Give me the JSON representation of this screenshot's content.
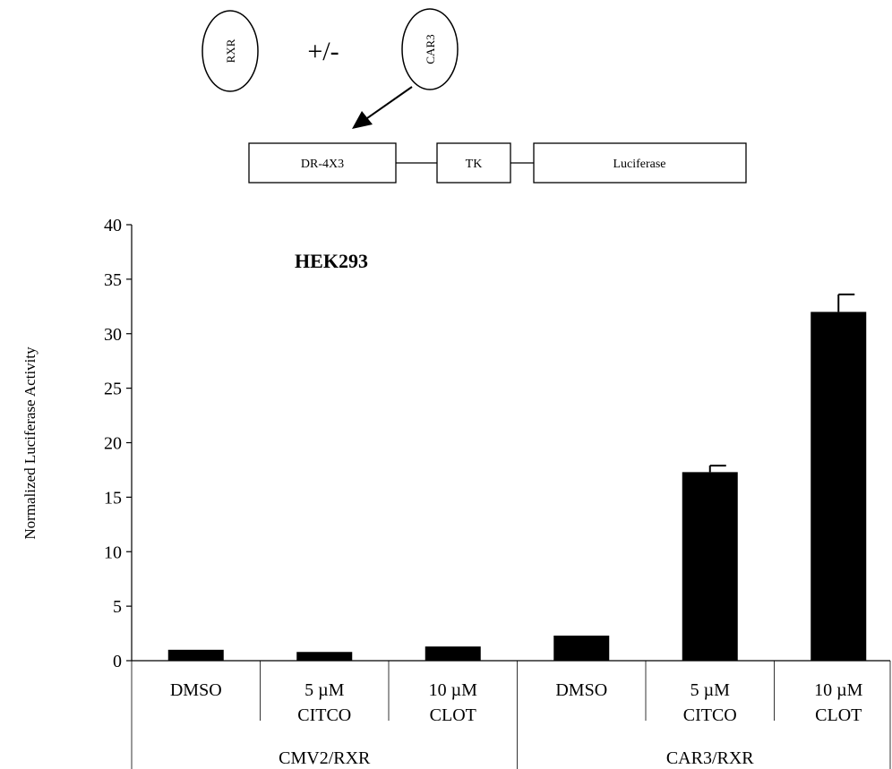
{
  "diagram": {
    "rxr_label": "RXR",
    "plus_minus_label": "+/-",
    "car3_label": "CAR3",
    "dr4x3_label": "DR-4X3",
    "tk_label": "TK",
    "luciferase_label": "Luciferase"
  },
  "chart_data": {
    "type": "bar",
    "title": "HEK293",
    "ylabel": "Normalized Luciferase Activity",
    "xlabel": "",
    "ylim": [
      0,
      40
    ],
    "yticks": [
      0,
      5,
      10,
      15,
      20,
      25,
      30,
      35,
      40
    ],
    "bar_color": "#000000",
    "categories": [
      {
        "line1": "DMSO",
        "line2": ""
      },
      {
        "line1": "5 µM",
        "line2": "CITCO"
      },
      {
        "line1": "10 µM",
        "line2": "CLOT"
      },
      {
        "line1": "DMSO",
        "line2": ""
      },
      {
        "line1": "5 µM",
        "line2": "CITCO"
      },
      {
        "line1": "10 µM",
        "line2": "CLOT"
      }
    ],
    "values": [
      1.0,
      0.8,
      1.3,
      2.3,
      17.3,
      32.0
    ],
    "errors": [
      0.0,
      0.1,
      0.0,
      0.15,
      0.6,
      1.6
    ],
    "groups": [
      {
        "label": "CMV2/RXR",
        "start": 0,
        "end": 2
      },
      {
        "label": "CAR3/RXR",
        "start": 3,
        "end": 5
      }
    ]
  }
}
